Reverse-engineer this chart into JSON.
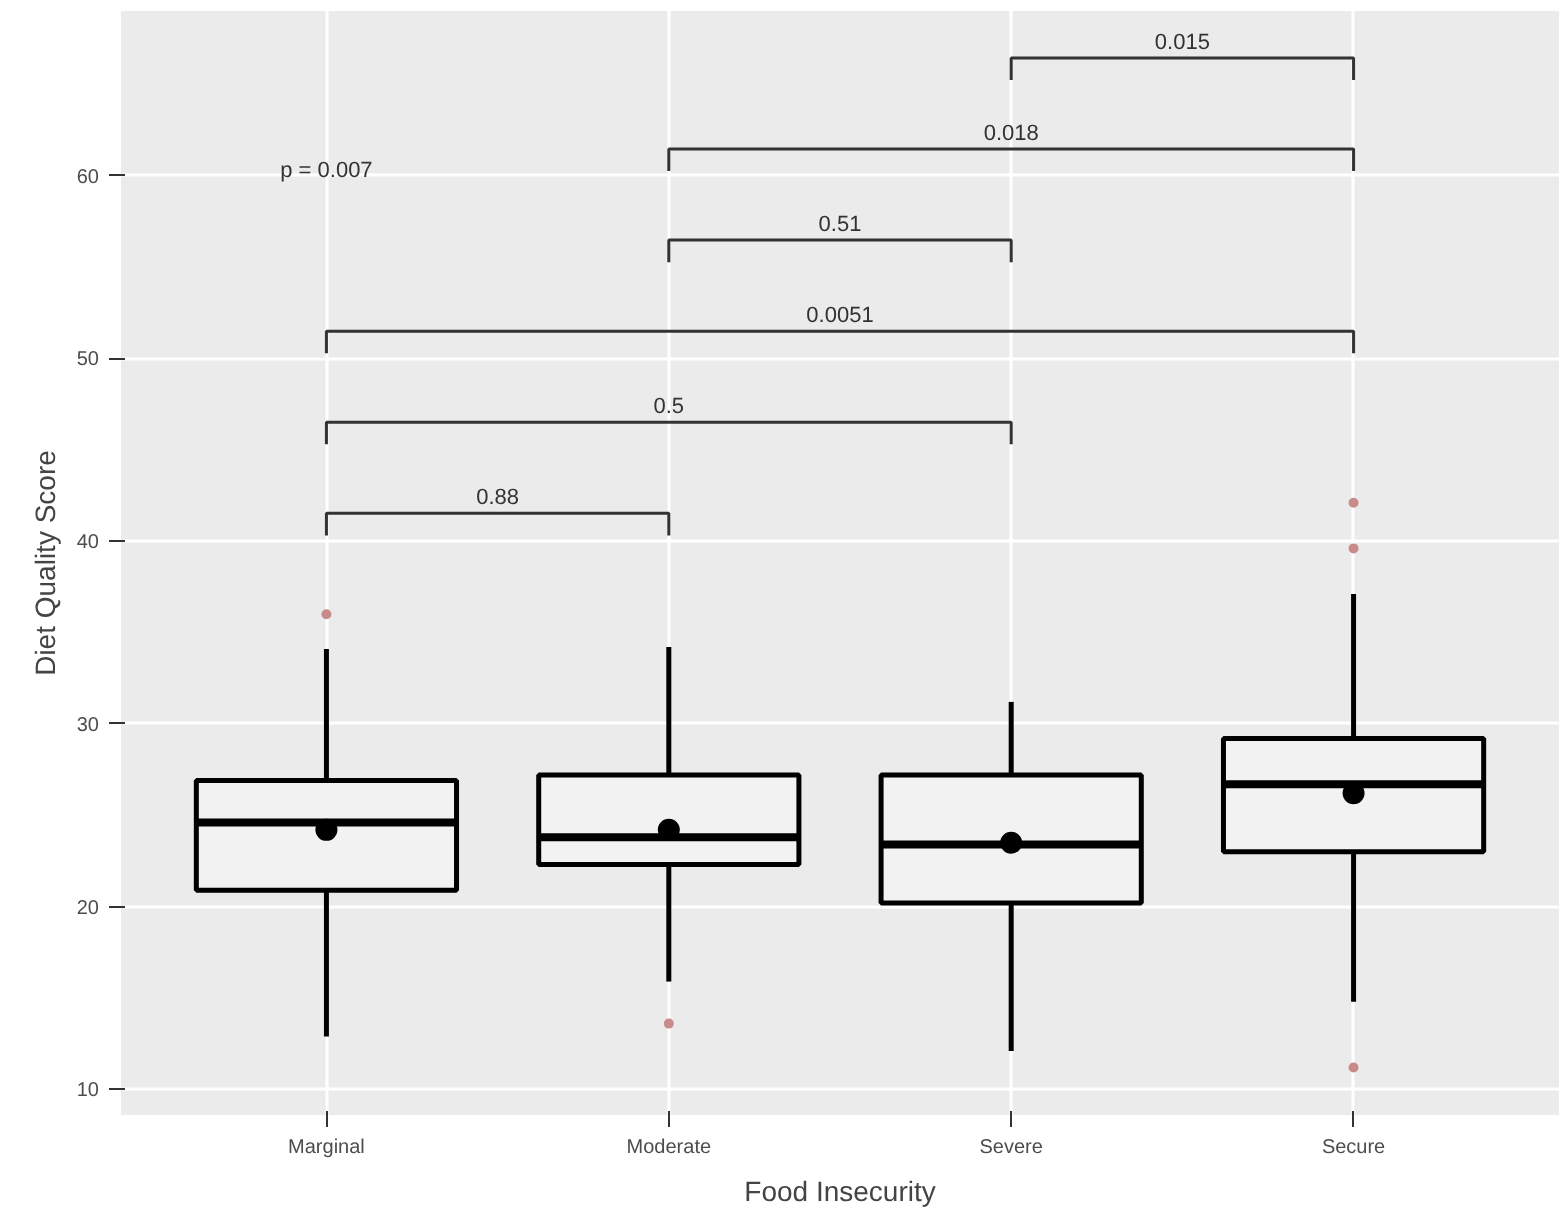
{
  "chart_data": {
    "type": "box",
    "xlabel": "Food Insecurity",
    "ylabel": "Diet Quality Score",
    "categories": [
      "Marginal",
      "Moderate",
      "Severe",
      "Secure"
    ],
    "boxes": [
      {
        "low": 12.9,
        "q1": 20.9,
        "median": 24.6,
        "q3": 26.9,
        "high": 34.1,
        "mean": 24.2,
        "outliers": [
          36.0
        ]
      },
      {
        "low": 15.9,
        "q1": 22.3,
        "median": 23.8,
        "q3": 27.2,
        "high": 34.2,
        "mean": 24.2,
        "outliers": [
          13.6
        ]
      },
      {
        "low": 12.1,
        "q1": 20.2,
        "median": 23.4,
        "q3": 27.2,
        "high": 31.2,
        "mean": 23.5
      },
      {
        "low": 14.8,
        "q1": 23.0,
        "median": 26.7,
        "q3": 29.2,
        "high": 37.1,
        "mean": 26.2,
        "outliers": [
          42.1,
          39.6,
          11.2
        ]
      }
    ],
    "color": "#f2f2f2",
    "ylim": [
      8.6,
      69
    ],
    "yticks": [
      10,
      20,
      30,
      40,
      50,
      60
    ],
    "grid": true,
    "annotations": [
      "p = 0.007",
      "0.88",
      "0.5",
      "0.0051",
      "0.51",
      "0.018",
      "0.015"
    ]
  }
}
